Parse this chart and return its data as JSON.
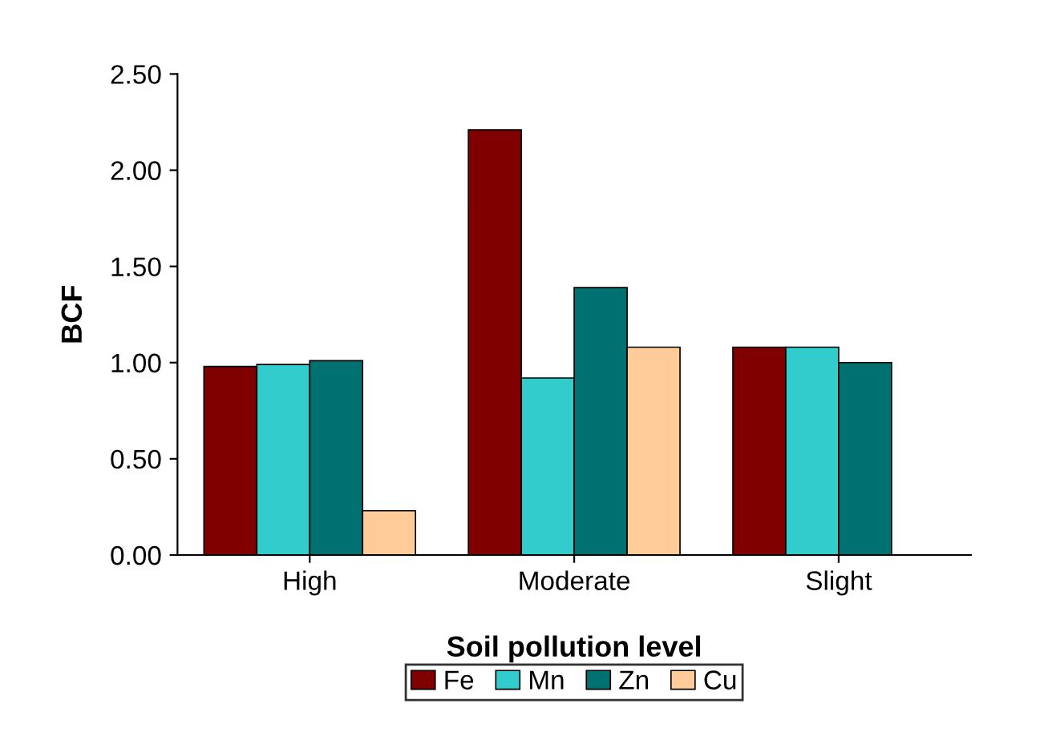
{
  "chart_data": {
    "type": "bar",
    "xlabel": "Soil pollution level",
    "ylabel": "BCF",
    "categories": [
      "High",
      "Moderate",
      "Slight"
    ],
    "series": [
      {
        "name": "Fe",
        "color": "#800000",
        "values": [
          0.98,
          2.21,
          1.08
        ]
      },
      {
        "name": "Mn",
        "color": "#33cccc",
        "values": [
          0.99,
          0.92,
          1.08
        ]
      },
      {
        "name": "Zn",
        "color": "#007070",
        "values": [
          1.01,
          1.39,
          1.0
        ]
      },
      {
        "name": "Cu",
        "color": "#ffcc99",
        "values": [
          0.23,
          1.08,
          null
        ]
      }
    ],
    "ylim": [
      0,
      2.5
    ],
    "yticks": [
      {
        "value": 0,
        "label": "0.00"
      },
      {
        "value": 0.5,
        "label": "0.50"
      },
      {
        "value": 1,
        "label": "1.00"
      },
      {
        "value": 1.5,
        "label": "1.50"
      },
      {
        "value": 2,
        "label": "2.00"
      },
      {
        "value": 2.5,
        "label": "2.50"
      }
    ],
    "grid": false,
    "legend": "bottom"
  }
}
